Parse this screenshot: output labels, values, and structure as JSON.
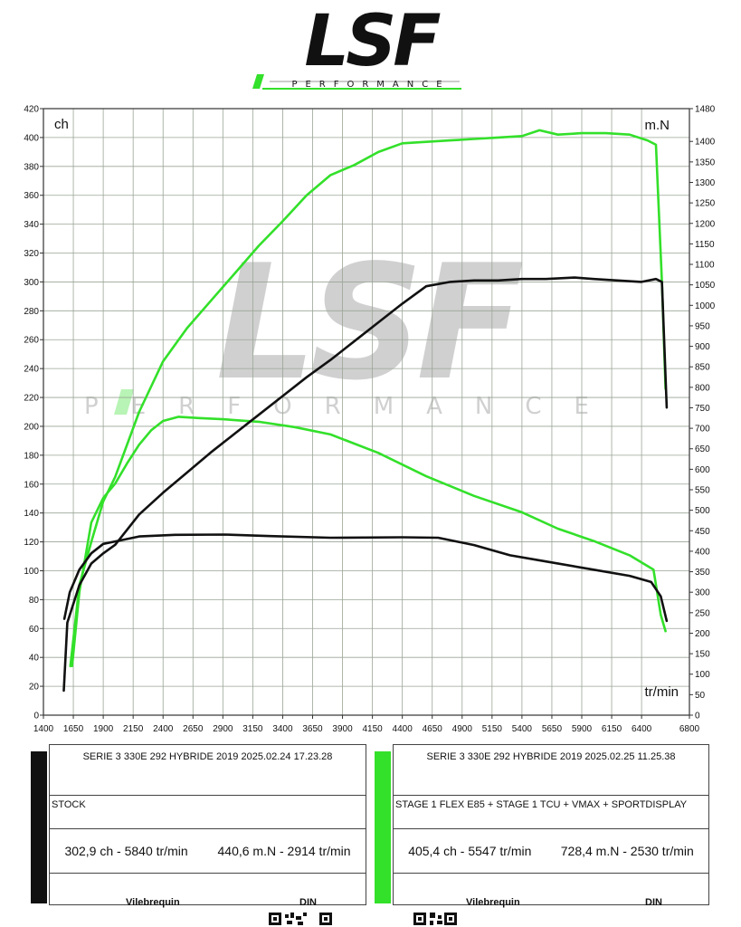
{
  "brand": {
    "logo_text": "LSF",
    "logo_subtext": "PERFORMANCE",
    "watermark_text": "LSF",
    "watermark_subtext": "PERFORMANCE",
    "colors": {
      "green": "#33e02a",
      "black": "#111111",
      "grey": "#c8c8c8"
    }
  },
  "chart_data": {
    "type": "line",
    "title": "",
    "left_axis_label": "ch",
    "right_axis_label": "m.N",
    "x_axis_label": "tr/min",
    "xlim": [
      1400,
      6800
    ],
    "x_ticks": [
      1400,
      1650,
      1900,
      2150,
      2400,
      2650,
      2900,
      3150,
      3400,
      3650,
      3900,
      4150,
      4400,
      4650,
      4900,
      5150,
      5400,
      5650,
      5900,
      6150,
      6400,
      6800
    ],
    "ylim_left": [
      0,
      420
    ],
    "y_ticks_left": [
      0,
      20,
      40,
      60,
      80,
      100,
      120,
      140,
      160,
      180,
      200,
      220,
      240,
      260,
      280,
      300,
      320,
      340,
      360,
      380,
      400,
      420
    ],
    "ylim_right": [
      0,
      1480
    ],
    "y_ticks_right": [
      0,
      50,
      100,
      150,
      200,
      250,
      300,
      350,
      400,
      450,
      500,
      550,
      600,
      650,
      700,
      750,
      800,
      850,
      900,
      950,
      1000,
      1050,
      1100,
      1150,
      1200,
      1250,
      1300,
      1350,
      1400,
      1480
    ],
    "grid": true,
    "series": [
      {
        "color": "#33e02a",
        "axis": "left",
        "x": [
          1625,
          1700,
          1800,
          1900,
          2000,
          2200,
          2400,
          2600,
          2800,
          3000,
          3200,
          3400,
          3600,
          3800,
          4000,
          4200,
          4400,
          4600,
          4800,
          5000,
          5200,
          5400,
          5547,
          5700,
          5900,
          6100,
          6300,
          6450,
          6520,
          6570,
          6600
        ],
        "y": [
          34,
          90,
          120,
          148,
          165,
          210,
          245,
          268,
          287,
          306,
          325,
          342,
          360,
          374,
          381,
          390,
          396,
          397,
          398,
          399,
          400,
          401,
          405,
          402,
          403,
          403,
          402,
          398,
          395,
          300,
          226
        ]
      },
      {
        "color": "#33e02a",
        "axis": "right",
        "x": [
          1640,
          1700,
          1800,
          1900,
          2000,
          2100,
          2200,
          2300,
          2400,
          2530,
          2700,
          2900,
          3200,
          3500,
          3800,
          4200,
          4600,
          5000,
          5400,
          5700,
          6000,
          6300,
          6500,
          6560,
          6600
        ],
        "y": [
          120,
          300,
          470,
          530,
          565,
          615,
          660,
          695,
          718,
          728,
          725,
          722,
          716,
          703,
          685,
          640,
          583,
          535,
          495,
          455,
          425,
          390,
          355,
          245,
          205
        ]
      },
      {
        "color": "#111111",
        "axis": "left",
        "x": [
          1570,
          1600,
          1700,
          1800,
          1900,
          2000,
          2200,
          2400,
          2600,
          2800,
          3000,
          3200,
          3400,
          3600,
          3800,
          4000,
          4200,
          4400,
          4600,
          4800,
          5000,
          5200,
          5400,
          5600,
          5840,
          6000,
          6200,
          6400,
          6520,
          6570,
          6610
        ],
        "y": [
          17,
          64,
          90,
          105,
          112,
          118,
          139,
          154,
          168,
          182,
          195,
          208,
          221,
          234,
          246,
          259,
          272,
          285,
          297,
          300,
          301,
          301,
          302,
          302,
          303,
          302,
          301,
          300,
          302,
          300,
          213
        ]
      },
      {
        "color": "#111111",
        "axis": "right",
        "x": [
          1575,
          1620,
          1700,
          1800,
          1900,
          2000,
          2200,
          2500,
          2914,
          3300,
          3800,
          4400,
          4700,
          5000,
          5300,
          5600,
          6000,
          6300,
          6480,
          6560,
          6610
        ],
        "y": [
          235,
          300,
          355,
          395,
          418,
          424,
          436,
          440,
          440.6,
          437,
          433,
          434,
          433,
          415,
          390,
          375,
          355,
          340,
          325,
          290,
          230
        ]
      }
    ]
  },
  "cards": [
    {
      "swatch_color": "#111111",
      "header": "SERIE 3 330E 292 HYBRIDE 2019   2025.02.24 17.23.28",
      "config": "STOCK",
      "power": "302,9 ch - 5840 tr/min",
      "torque": "440,6 m.N - 2914 tr/min",
      "footer_left": "Vilebrequin",
      "footer_right": "DIN"
    },
    {
      "swatch_color": "#33e02a",
      "header": "SERIE 3 330E 292 HYBRIDE 2019   2025.02.25 11.25.38",
      "config": "STAGE 1 FLEX E85 + STAGE 1 TCU + VMAX + SPORTDISPLAY",
      "power": "405,4 ch - 5547 tr/min",
      "torque": "728,4 m.N - 2530 tr/min",
      "footer_left": "Vilebrequin",
      "footer_right": "DIN"
    }
  ]
}
